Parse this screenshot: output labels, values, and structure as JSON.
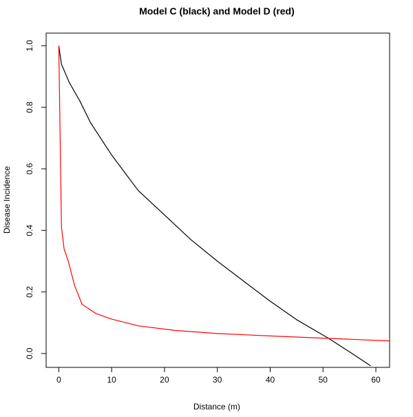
{
  "chart_data": {
    "type": "line",
    "title": "Model C (black) and Model D (red)",
    "xlabel": "Distance (m)",
    "ylabel": "Disease Incidence",
    "xlim": [
      -2.4,
      62.6
    ],
    "ylim": [
      -0.045,
      1.041
    ],
    "xticks": [
      0,
      10,
      20,
      30,
      40,
      50,
      60
    ],
    "yticks": [
      0.0,
      0.2,
      0.4,
      0.6,
      0.8,
      1.0
    ],
    "ytick_labels": [
      "0.0",
      "0.2",
      "0.4",
      "0.6",
      "0.8",
      "1.0"
    ],
    "grid": false,
    "series": [
      {
        "name": "Model C",
        "color": "#000000",
        "x": [
          0,
          0.5,
          2,
          4,
          6,
          10,
          15,
          20,
          25,
          30,
          35,
          40,
          45,
          51,
          55.5,
          59
        ],
        "y": [
          1,
          0.94,
          0.88,
          0.82,
          0.75,
          0.645,
          0.53,
          0.45,
          0.37,
          0.3,
          0.235,
          0.17,
          0.11,
          0.05,
          0.0,
          -0.04
        ]
      },
      {
        "name": "Model D",
        "color": "#ff0000",
        "x": [
          0,
          0.5,
          1,
          1.8,
          3,
          4.4,
          7,
          10,
          15,
          22,
          30,
          40,
          50,
          62.6
        ],
        "y": [
          1,
          0.41,
          0.34,
          0.3,
          0.22,
          0.16,
          0.13,
          0.112,
          0.09,
          0.075,
          0.065,
          0.057,
          0.05,
          0.041
        ]
      }
    ]
  }
}
